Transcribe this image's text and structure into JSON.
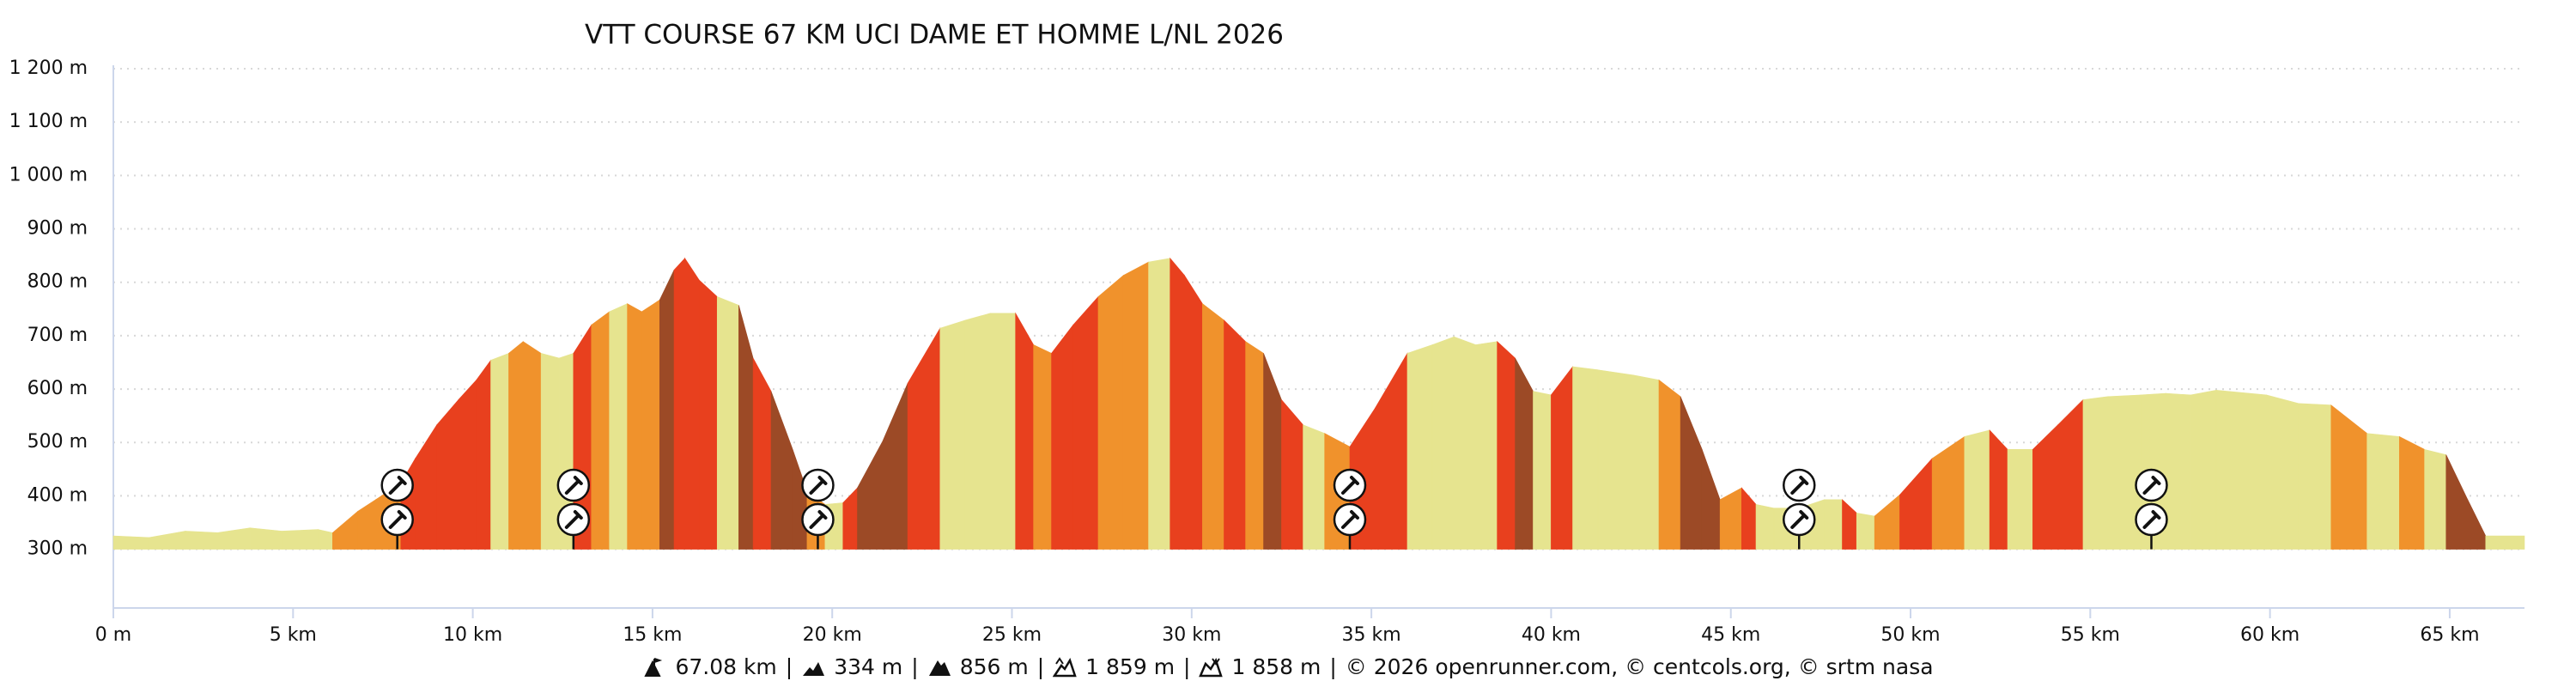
{
  "chart_data": {
    "type": "area",
    "title": "VTT COURSE 67 KM UCI DAME ET HOMME L/NL 2026",
    "x": [
      0,
      1.0,
      2.0,
      2.9,
      3.8,
      4.7,
      5.7,
      6.1,
      6.8,
      7.3,
      8.0,
      8.4,
      9.0,
      9.6,
      10.1,
      10.5,
      11.0,
      11.4,
      11.9,
      12.4,
      12.8,
      13.3,
      13.8,
      14.3,
      14.7,
      15.2,
      15.6,
      15.9,
      16.3,
      16.8,
      17.4,
      17.8,
      18.3,
      18.9,
      19.3,
      19.8,
      20.3,
      20.7,
      21.4,
      22.1,
      23.0,
      23.7,
      24.4,
      25.1,
      25.6,
      26.1,
      26.7,
      27.4,
      28.1,
      28.8,
      29.4,
      29.8,
      30.3,
      30.9,
      31.5,
      32.0,
      32.5,
      33.1,
      33.7,
      34.4,
      35.1,
      36.0,
      36.7,
      37.3,
      37.9,
      38.5,
      39.0,
      39.5,
      40.0,
      40.6,
      41.3,
      42.3,
      43.0,
      43.6,
      44.2,
      44.7,
      45.3,
      45.7,
      46.2,
      46.9,
      47.6,
      48.1,
      48.5,
      49.0,
      49.7,
      50.6,
      51.5,
      52.2,
      52.7,
      53.4,
      54.1,
      54.8,
      55.5,
      56.4,
      57.1,
      57.8,
      58.5,
      59.9,
      60.8,
      61.7,
      62.7,
      63.6,
      64.3,
      64.9,
      65.5,
      66.0,
      67.08
    ],
    "y": [
      325,
      322,
      334,
      331,
      340,
      334,
      337,
      331,
      371,
      393,
      424,
      470,
      533,
      580,
      617,
      654,
      667,
      689,
      667,
      658,
      667,
      720,
      745,
      760,
      745,
      767,
      823,
      845,
      804,
      773,
      757,
      658,
      596,
      487,
      409,
      384,
      387,
      415,
      502,
      611,
      714,
      729,
      742,
      742,
      683,
      667,
      720,
      773,
      813,
      838,
      845,
      813,
      760,
      729,
      689,
      667,
      580,
      533,
      517,
      492,
      564,
      667,
      683,
      698,
      683,
      689,
      658,
      596,
      589,
      642,
      636,
      626,
      617,
      586,
      487,
      393,
      415,
      384,
      377,
      377,
      393,
      393,
      368,
      362,
      402,
      470,
      511,
      523,
      487,
      487,
      533,
      580,
      586,
      589,
      592,
      589,
      598,
      589,
      573,
      570,
      517,
      511,
      487,
      477,
      393,
      325,
      325
    ],
    "segment_colors": [
      "#e6e48f",
      "#e6e48f",
      "#e6e48f",
      "#e6e48f",
      "#e6e48f",
      "#e6e48f",
      "#e6e48f",
      "#f0922c",
      "#f0922c",
      "#f0922c",
      "#e8401e",
      "#e8401e",
      "#e8401e",
      "#e8401e",
      "#e8401e",
      "#e6e48f",
      "#f0922c",
      "#f0922c",
      "#e6e48f",
      "#e6e48f",
      "#e8401e",
      "#f0922c",
      "#e6e48f",
      "#f0922c",
      "#f0922c",
      "#9c4a26",
      "#e8401e",
      "#e8401e",
      "#e8401e",
      "#e6e48f",
      "#9c4a26",
      "#e8401e",
      "#9c4a26",
      "#9c4a26",
      "#f0922c",
      "#e6e48f",
      "#e8401e",
      "#9c4a26",
      "#9c4a26",
      "#e8401e",
      "#e6e48f",
      "#e6e48f",
      "#e6e48f",
      "#e8401e",
      "#f0922c",
      "#e8401e",
      "#e8401e",
      "#f0922c",
      "#f0922c",
      "#e6e48f",
      "#e8401e",
      "#e8401e",
      "#f0922c",
      "#e8401e",
      "#f0922c",
      "#9c4a26",
      "#e8401e",
      "#e6e48f",
      "#f0922c",
      "#e8401e",
      "#e8401e",
      "#e6e48f",
      "#e6e48f",
      "#e6e48f",
      "#e6e48f",
      "#e8401e",
      "#9c4a26",
      "#e6e48f",
      "#e8401e",
      "#e6e48f",
      "#e6e48f",
      "#e6e48f",
      "#f0922c",
      "#9c4a26",
      "#9c4a26",
      "#f0922c",
      "#e8401e",
      "#e6e48f",
      "#e6e48f",
      "#e6e48f",
      "#e6e48f",
      "#e8401e",
      "#e6e48f",
      "#f0922c",
      "#e8401e",
      "#f0922c",
      "#e6e48f",
      "#e8401e",
      "#e6e48f",
      "#e8401e",
      "#e8401e",
      "#e6e48f",
      "#e6e48f",
      "#e6e48f",
      "#e6e48f",
      "#e6e48f",
      "#e6e48f",
      "#e6e48f",
      "#e6e48f",
      "#f0922c",
      "#e6e48f",
      "#f0922c",
      "#e6e48f",
      "#9c4a26",
      "#9c4a26",
      "#e6e48f"
    ],
    "waypoints_x": [
      7.9,
      12.8,
      19.6,
      34.4,
      46.9,
      56.7
    ],
    "xlim": [
      0,
      67.08
    ],
    "ylim": [
      190,
      1200
    ],
    "xticks": [
      {
        "value": 0,
        "label": "0 m"
      },
      {
        "value": 5,
        "label": "5 km"
      },
      {
        "value": 10,
        "label": "10 km"
      },
      {
        "value": 15,
        "label": "15 km"
      },
      {
        "value": 20,
        "label": "20 km"
      },
      {
        "value": 25,
        "label": "25 km"
      },
      {
        "value": 30,
        "label": "30 km"
      },
      {
        "value": 35,
        "label": "35 km"
      },
      {
        "value": 40,
        "label": "40 km"
      },
      {
        "value": 45,
        "label": "45 km"
      },
      {
        "value": 50,
        "label": "50 km"
      },
      {
        "value": 55,
        "label": "55 km"
      },
      {
        "value": 60,
        "label": "60 km"
      },
      {
        "value": 65,
        "label": "65 km"
      }
    ],
    "yticks": [
      {
        "value": 300,
        "label": "300 m"
      },
      {
        "value": 400,
        "label": "400 m"
      },
      {
        "value": 500,
        "label": "500 m"
      },
      {
        "value": 600,
        "label": "600 m"
      },
      {
        "value": 700,
        "label": "700 m"
      },
      {
        "value": 800,
        "label": "800 m"
      },
      {
        "value": 900,
        "label": "900 m"
      },
      {
        "value": 1000,
        "label": "1 000 m"
      },
      {
        "value": 1100,
        "label": "1 100 m"
      },
      {
        "value": 1200,
        "label": "1 200 m"
      }
    ],
    "grid": true,
    "footer": {
      "separator": "|",
      "distance": "67.08 km",
      "min_elevation": "334 m",
      "max_elevation": "856 m",
      "ascent": "1 859 m",
      "descent": "1 858 m",
      "credits": "© 2026 openrunner.com, © centcols.org, © srtm nasa"
    }
  }
}
